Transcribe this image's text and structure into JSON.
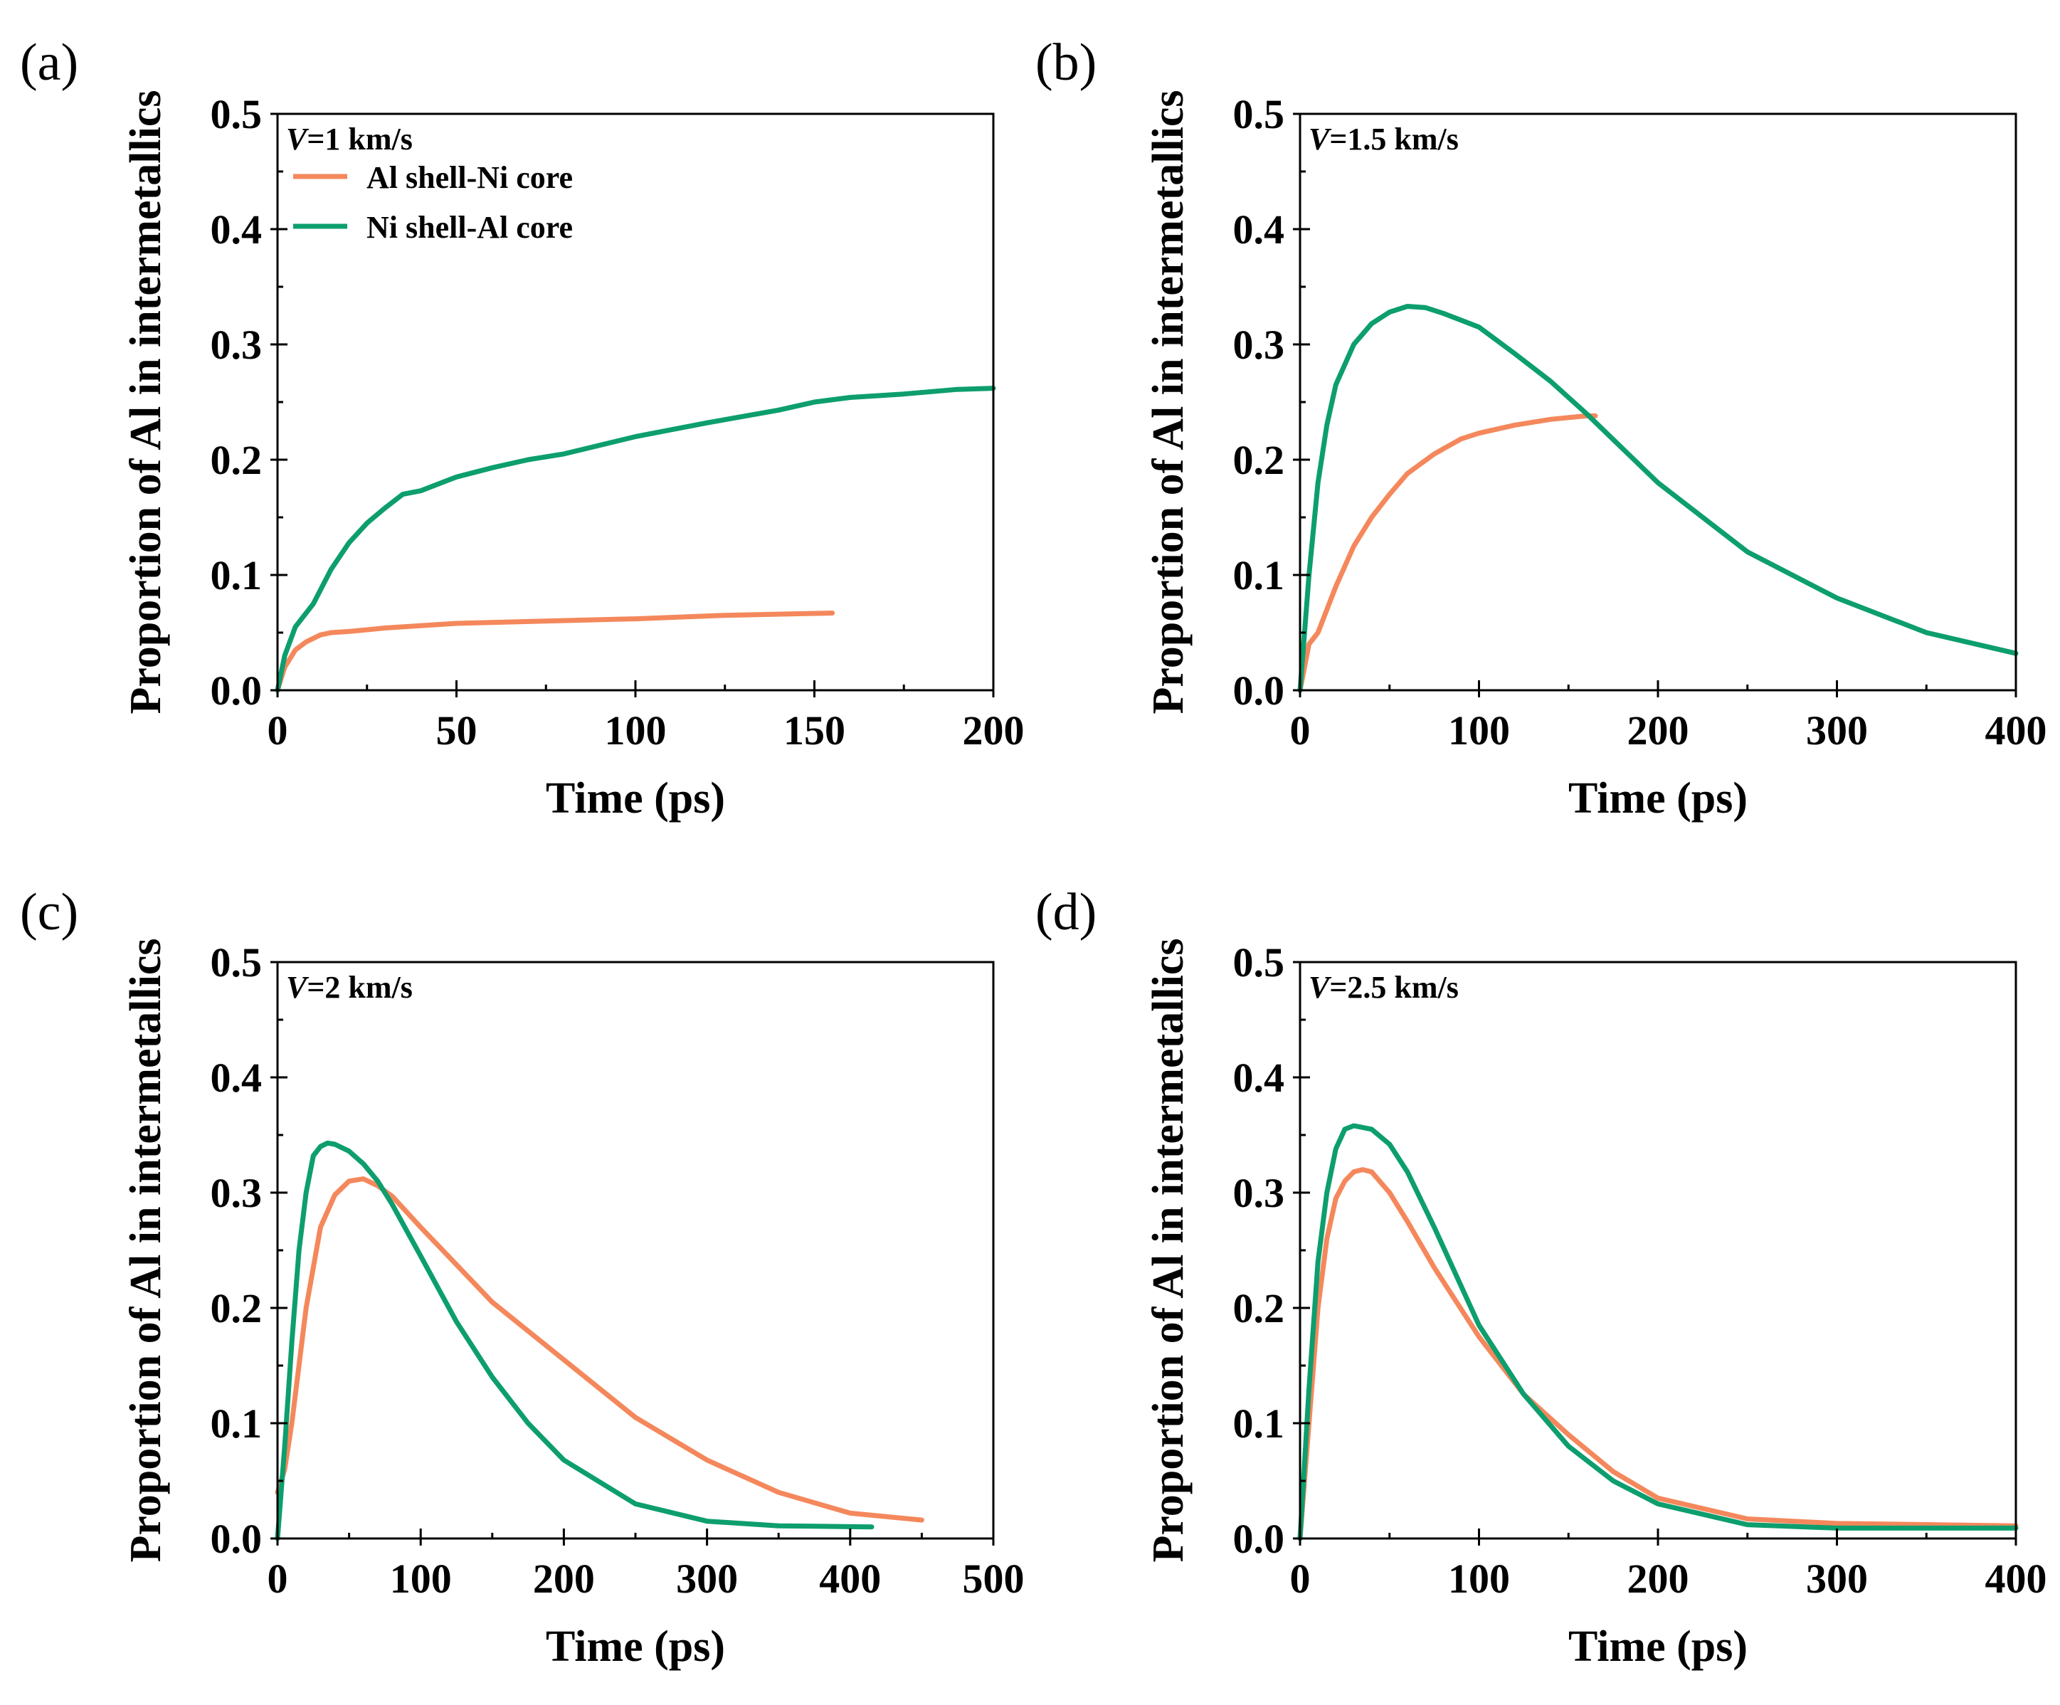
{
  "colors": {
    "al_shell": "#f4885c",
    "ni_shell": "#0d9e6e"
  },
  "chart_data": [
    {
      "type": "line",
      "panel": "(a)",
      "annotation": {
        "italic": "V",
        "rest": "=1 km/s"
      },
      "legend": [
        "Al shell-Ni core",
        "Ni shell-Al core"
      ],
      "xlabel": "Time (ps)",
      "ylabel": "Proportion of Al in intermetallics",
      "xlim": [
        0,
        200
      ],
      "ylim": [
        0,
        0.5
      ],
      "xticks": [
        0,
        50,
        100,
        150,
        200
      ],
      "yticks": [
        0.0,
        0.1,
        0.2,
        0.3,
        0.4,
        0.5
      ],
      "xtick_labels": [
        "0",
        "50",
        "100",
        "150",
        "200"
      ],
      "ytick_labels": [
        "0.0",
        "0.1",
        "0.2",
        "0.3",
        "0.4",
        "0.5"
      ],
      "series": [
        {
          "name": "Al shell-Ni core",
          "color": "#f4885c",
          "x": [
            0,
            2,
            5,
            8,
            12,
            15,
            20,
            30,
            40,
            50,
            75,
            100,
            125,
            155
          ],
          "y": [
            0,
            0.02,
            0.035,
            0.042,
            0.048,
            0.05,
            0.051,
            0.054,
            0.056,
            0.058,
            0.06,
            0.062,
            0.065,
            0.067
          ]
        },
        {
          "name": "Ni shell-Al core",
          "color": "#0d9e6e",
          "x": [
            0,
            2,
            5,
            10,
            15,
            20,
            25,
            30,
            35,
            40,
            50,
            60,
            70,
            80,
            100,
            120,
            140,
            150,
            160,
            175,
            190,
            200
          ],
          "y": [
            0,
            0.03,
            0.055,
            0.075,
            0.105,
            0.128,
            0.145,
            0.158,
            0.17,
            0.173,
            0.185,
            0.193,
            0.2,
            0.205,
            0.22,
            0.232,
            0.243,
            0.25,
            0.254,
            0.257,
            0.261,
            0.262
          ]
        }
      ]
    },
    {
      "type": "line",
      "panel": "(b)",
      "annotation": {
        "italic": "V",
        "rest": "=1.5 km/s"
      },
      "xlabel": "Time (ps)",
      "ylabel": "Proportion of Al in intermetallics",
      "xlim": [
        0,
        400
      ],
      "ylim": [
        0,
        0.5
      ],
      "xticks": [
        0,
        100,
        200,
        300,
        400
      ],
      "yticks": [
        0.0,
        0.1,
        0.2,
        0.3,
        0.4,
        0.5
      ],
      "xtick_labels": [
        "0",
        "100",
        "200",
        "300",
        "400"
      ],
      "ytick_labels": [
        "0.0",
        "0.1",
        "0.2",
        "0.3",
        "0.4",
        "0.5"
      ],
      "series": [
        {
          "name": "Al shell-Ni core",
          "color": "#f4885c",
          "x": [
            0,
            5,
            10,
            20,
            30,
            40,
            50,
            60,
            75,
            90,
            100,
            120,
            140,
            160,
            165
          ],
          "y": [
            0,
            0.04,
            0.05,
            0.09,
            0.125,
            0.15,
            0.17,
            0.188,
            0.205,
            0.218,
            0.223,
            0.23,
            0.235,
            0.238,
            0.238
          ]
        },
        {
          "name": "Ni shell-Al core",
          "color": "#0d9e6e",
          "x": [
            0,
            5,
            10,
            15,
            20,
            30,
            40,
            50,
            60,
            70,
            80,
            100,
            120,
            140,
            160,
            180,
            200,
            250,
            300,
            350,
            400
          ],
          "y": [
            0,
            0.1,
            0.18,
            0.23,
            0.265,
            0.3,
            0.318,
            0.328,
            0.333,
            0.332,
            0.327,
            0.315,
            0.292,
            0.268,
            0.24,
            0.21,
            0.18,
            0.12,
            0.08,
            0.05,
            0.032
          ]
        }
      ]
    },
    {
      "type": "line",
      "panel": "(c)",
      "annotation": {
        "italic": "V",
        "rest": "=2 km/s"
      },
      "xlabel": "Time (ps)",
      "ylabel": "Proportion of Al in intermetallics",
      "xlim": [
        0,
        500
      ],
      "ylim": [
        0,
        0.5
      ],
      "xticks": [
        0,
        100,
        200,
        300,
        400,
        500
      ],
      "yticks": [
        0.0,
        0.1,
        0.2,
        0.3,
        0.4,
        0.5
      ],
      "xtick_labels": [
        "0",
        "100",
        "200",
        "300",
        "400",
        "500"
      ],
      "ytick_labels": [
        "0.0",
        "0.1",
        "0.2",
        "0.3",
        "0.4",
        "0.5"
      ],
      "series": [
        {
          "name": "Al shell-Ni core",
          "color": "#f4885c",
          "x": [
            0,
            5,
            10,
            20,
            30,
            40,
            50,
            60,
            70,
            80,
            100,
            150,
            200,
            250,
            300,
            350,
            400,
            450
          ],
          "y": [
            0.04,
            0.06,
            0.1,
            0.2,
            0.27,
            0.298,
            0.31,
            0.312,
            0.306,
            0.297,
            0.27,
            0.205,
            0.155,
            0.105,
            0.068,
            0.04,
            0.022,
            0.016
          ]
        },
        {
          "name": "Ni shell-Al core",
          "color": "#0d9e6e",
          "x": [
            0,
            5,
            10,
            15,
            20,
            25,
            30,
            35,
            40,
            50,
            60,
            70,
            80,
            100,
            125,
            150,
            175,
            200,
            250,
            300,
            350,
            415
          ],
          "y": [
            0,
            0.08,
            0.17,
            0.25,
            0.3,
            0.332,
            0.34,
            0.343,
            0.342,
            0.336,
            0.325,
            0.31,
            0.29,
            0.245,
            0.188,
            0.14,
            0.1,
            0.068,
            0.03,
            0.015,
            0.011,
            0.01
          ]
        }
      ]
    },
    {
      "type": "line",
      "panel": "(d)",
      "annotation": {
        "italic": "V",
        "rest": "=2.5 km/s"
      },
      "xlabel": "Time (ps)",
      "ylabel": "Proportion of Al in intermetallics",
      "xlim": [
        0,
        400
      ],
      "ylim": [
        0,
        0.5
      ],
      "xticks": [
        0,
        100,
        200,
        300,
        400
      ],
      "yticks": [
        0.0,
        0.1,
        0.2,
        0.3,
        0.4,
        0.5
      ],
      "xtick_labels": [
        "0",
        "100",
        "200",
        "300",
        "400"
      ],
      "ytick_labels": [
        "0.0",
        "0.1",
        "0.2",
        "0.3",
        "0.4",
        "0.5"
      ],
      "series": [
        {
          "name": "Al shell-Ni core",
          "color": "#f4885c",
          "x": [
            0,
            5,
            10,
            15,
            20,
            25,
            30,
            35,
            40,
            50,
            60,
            75,
            100,
            125,
            150,
            175,
            200,
            250,
            300,
            400
          ],
          "y": [
            0,
            0.1,
            0.2,
            0.26,
            0.295,
            0.31,
            0.318,
            0.32,
            0.318,
            0.3,
            0.275,
            0.235,
            0.175,
            0.125,
            0.09,
            0.058,
            0.035,
            0.017,
            0.013,
            0.011
          ]
        },
        {
          "name": "Ni shell-Al core",
          "color": "#0d9e6e",
          "x": [
            0,
            5,
            10,
            15,
            20,
            25,
            30,
            40,
            50,
            60,
            75,
            100,
            125,
            150,
            175,
            200,
            250,
            300,
            400
          ],
          "y": [
            0,
            0.13,
            0.24,
            0.3,
            0.338,
            0.355,
            0.358,
            0.355,
            0.342,
            0.318,
            0.27,
            0.185,
            0.125,
            0.08,
            0.05,
            0.03,
            0.012,
            0.009,
            0.009
          ]
        }
      ]
    }
  ]
}
